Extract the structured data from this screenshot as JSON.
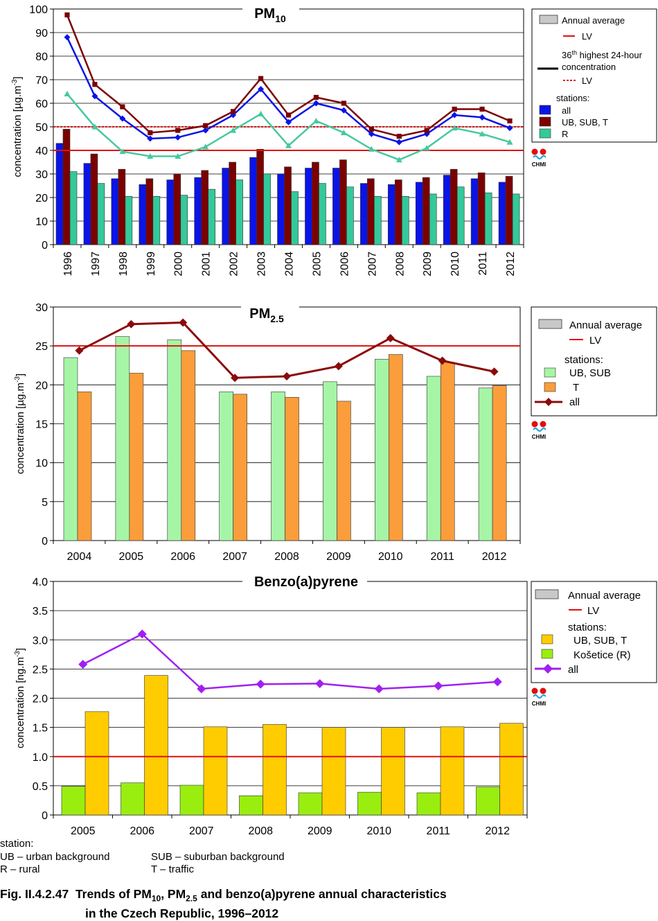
{
  "charts": [
    {
      "id": "pm10",
      "title": "PM",
      "title_sub": "10",
      "ylabel": "concentration [µg.m",
      "ylabel_sup": "-3",
      "ylabel_end": "]",
      "yticks": [
        "0",
        "10",
        "20",
        "30",
        "40",
        "50",
        "60",
        "70",
        "80",
        "90",
        "100"
      ],
      "logo_text": "CHMI",
      "legend": {
        "annual_average": "Annual average",
        "lv": "LV",
        "highest_pre": "36",
        "highest_sup": "th",
        "highest_post": " highest 24-hour",
        "highest_line2": "concentration",
        "lv_dashed": "LV",
        "stations": "stations:",
        "series": [
          "all",
          "UB, SUB, T",
          "R"
        ]
      }
    },
    {
      "id": "pm25",
      "title": "PM",
      "title_sub": "2.5",
      "ylabel": "concentration [µg.m",
      "ylabel_sup": "-3",
      "ylabel_end": "]",
      "yticks": [
        "0",
        "5",
        "10",
        "15",
        "20",
        "25",
        "30"
      ],
      "logo_text": "CHMI",
      "legend": {
        "annual_average": "Annual average",
        "lv": "LV",
        "stations": "stations:",
        "series": [
          "UB, SUB",
          "T",
          "all"
        ]
      }
    },
    {
      "id": "bap",
      "title": "Benzo(a)pyrene",
      "ylabel": "concentration [ng.m",
      "ylabel_sup": "-3",
      "ylabel_end": "]",
      "yticks": [
        "0",
        "0.5",
        "1.0",
        "1.5",
        "2.0",
        "2.5",
        "3.0",
        "3.5",
        "4.0"
      ],
      "logo_text": "CHMI",
      "legend": {
        "annual_average": "Annual average",
        "lv": "LV",
        "stations": "stations:",
        "series": [
          "UB, SUB, T",
          "Košetice (R)",
          "all"
        ]
      }
    }
  ],
  "chart_data": [
    {
      "type": "bar",
      "title": "PM10",
      "ylabel": "concentration [µg.m-3]",
      "ylim": [
        0,
        100
      ],
      "categories": [
        "1996",
        "1997",
        "1998",
        "1999",
        "2000",
        "2001",
        "2002",
        "2003",
        "2004",
        "2005",
        "2006",
        "2007",
        "2008",
        "2009",
        "2010",
        "2011",
        "2012"
      ],
      "bar_series": [
        {
          "name": "all",
          "color": "#0a14e6",
          "values": [
            43,
            34.5,
            28,
            25.5,
            27.5,
            28.5,
            32.5,
            37,
            30,
            32.5,
            32.5,
            26,
            25.5,
            26.5,
            29.5,
            28,
            26.5
          ]
        },
        {
          "name": "UB, SUB, T",
          "color": "#7b0000",
          "values": [
            49,
            38.5,
            32,
            28,
            30,
            31.5,
            35,
            40.5,
            33,
            35,
            36,
            28,
            27.5,
            28.5,
            32,
            30.5,
            29
          ]
        },
        {
          "name": "R",
          "color": "#33c99a",
          "values": [
            31,
            26,
            20.5,
            20.5,
            21,
            23.5,
            27.5,
            30,
            22.5,
            26,
            24.5,
            20.5,
            20.5,
            21.5,
            24.5,
            22,
            21.5
          ]
        }
      ],
      "line_series": [
        {
          "name": "all (36th highest 24-hour concentration)",
          "color": "#0a14e6",
          "values": [
            88,
            63,
            53.5,
            45,
            45.5,
            48.5,
            55,
            66,
            52,
            60,
            57,
            47,
            43.5,
            47,
            55,
            54,
            49.5
          ]
        },
        {
          "name": "UB, SUB, T (36th highest 24-hour concentration)",
          "color": "#7b0000",
          "values": [
            97.5,
            68,
            58.5,
            47.5,
            48.5,
            50.5,
            56.5,
            70.5,
            55,
            62.5,
            60,
            49,
            46,
            48.5,
            57.5,
            57.5,
            52.5
          ]
        },
        {
          "name": "R (36th highest 24-hour concentration)",
          "color": "#45c8a0",
          "values": [
            64,
            50,
            39.5,
            37.5,
            37.5,
            41.5,
            48.5,
            55.5,
            42,
            52.5,
            47.5,
            40.5,
            36,
            41,
            49.5,
            47,
            43.5
          ]
        }
      ],
      "limit_values": {
        "annual_LV": 40,
        "daily_36th_LV": 50
      }
    },
    {
      "type": "bar",
      "title": "PM2.5",
      "ylabel": "concentration [µg.m-3]",
      "ylim": [
        0,
        30
      ],
      "categories": [
        "2004",
        "2005",
        "2006",
        "2007",
        "2008",
        "2009",
        "2010",
        "2011",
        "2012"
      ],
      "bar_series": [
        {
          "name": "UB, SUB",
          "color": "#a6f5a6",
          "values": [
            23.5,
            26.2,
            25.8,
            19.1,
            19.1,
            20.4,
            23.3,
            21.1,
            19.6
          ]
        },
        {
          "name": "T",
          "color": "#fb9d3b",
          "values": [
            19.1,
            21.5,
            24.4,
            18.8,
            18.4,
            17.9,
            23.9,
            22.9,
            19.9
          ]
        }
      ],
      "line_series": [
        {
          "name": "all",
          "color": "#8b0a0a",
          "values": [
            24.4,
            27.8,
            28,
            20.9,
            21.1,
            22.4,
            26,
            23.1,
            21.7
          ]
        }
      ],
      "limit_values": {
        "LV": 25
      }
    },
    {
      "type": "bar",
      "title": "Benzo(a)pyrene",
      "ylabel": "concentration [ng.m-3]",
      "ylim": [
        0,
        4.0
      ],
      "categories": [
        "2005",
        "2006",
        "2007",
        "2008",
        "2009",
        "2010",
        "2011",
        "2012"
      ],
      "bar_series": [
        {
          "name": "Košetice (R)",
          "color": "#99ee10",
          "values": [
            0.49,
            0.55,
            0.51,
            0.33,
            0.38,
            0.39,
            0.38,
            0.48
          ]
        },
        {
          "name": "UB, SUB, T",
          "color": "#ffcc00",
          "values": [
            1.77,
            2.39,
            1.51,
            1.55,
            1.5,
            1.5,
            1.51,
            1.57
          ]
        }
      ],
      "line_series": [
        {
          "name": "all",
          "color": "#a020f0",
          "values": [
            2.58,
            3.1,
            2.16,
            2.24,
            2.25,
            2.16,
            2.21,
            2.28
          ]
        }
      ],
      "limit_values": {
        "LV": 1.0
      }
    }
  ],
  "notes": {
    "heading": "station:",
    "ub": "UB – urban background",
    "r": "R – rural",
    "sub": "SUB – suburban background",
    "t": "T – traffic"
  },
  "caption": {
    "label": "Fig. II.4.2.47",
    "p1": "Trends of PM",
    "s1": "10",
    "p2": ", PM",
    "s2": "2.5",
    "p3": " and benzo(a)pyrene annual characteristics",
    "line2": "in the Czech Republic, 1996–2012"
  }
}
